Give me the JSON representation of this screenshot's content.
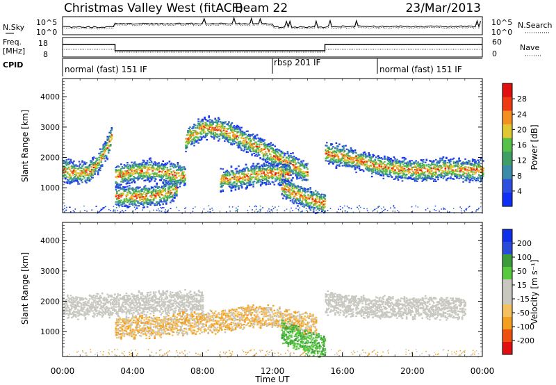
{
  "header": {
    "radar_title": "Christmas Valley West (fitACF)",
    "beam": "Beam 22",
    "date": "23/Mar/2013"
  },
  "nsky_panel": {
    "left_label": "N.Sky",
    "left_ticks": [
      "10^5",
      "10^0"
    ],
    "right_label": "N.Search",
    "right_ticks": [
      "10^5",
      "10^0"
    ]
  },
  "freq_panel": {
    "left_label_line1": "Freq.",
    "left_label_line2": "[MHz]",
    "left_ticks": [
      "18",
      "8"
    ],
    "right_label": "Nave",
    "right_ticks": [
      "60",
      "0"
    ]
  },
  "cpid": {
    "label": "CPID",
    "segments": [
      {
        "text": "normal (fast) 151 IF",
        "start_hour": 0.0
      },
      {
        "text": "rbsp 201 IF",
        "start_hour": 12.0
      },
      {
        "text": "normal (fast) 151 IF",
        "start_hour": 18.0
      }
    ]
  },
  "chart_data": [
    {
      "type": "heatmap",
      "name": "power",
      "ylabel": "Slant Range [km]",
      "yticks": [
        "4000",
        "3000",
        "2000",
        "1000"
      ],
      "ylim": [
        180,
        4600
      ],
      "xlim": [
        0,
        24
      ],
      "colorbar": {
        "label": "Power [dB]",
        "ticks": [
          "28",
          "24",
          "20",
          "16",
          "12",
          "8",
          "4"
        ],
        "range": [
          0,
          32
        ],
        "colors": [
          "#0f2ff2",
          "#2e4ee0",
          "#3a8ca8",
          "#3f9f64",
          "#56c14a",
          "#e0c830",
          "#f39020",
          "#ee3a14",
          "#e01010"
        ]
      },
      "series": [
        {
          "x": [
            0,
            0.5,
            1.0,
            1.5,
            2.0,
            2.5,
            2.8
          ],
          "y": [
            1600,
            1540,
            1490,
            1550,
            1850,
            2300,
            2800
          ]
        },
        {
          "x": [
            3.0,
            3.5,
            4.0,
            5.0,
            6.0,
            6.5
          ],
          "y": [
            750,
            730,
            740,
            760,
            850,
            1000
          ]
        },
        {
          "x": [
            3.0,
            4.0,
            5.0,
            6.0,
            7.0
          ],
          "y": [
            1400,
            1550,
            1600,
            1500,
            1400
          ]
        },
        {
          "x": [
            7.0,
            8.0,
            9.0,
            10.0,
            11.0,
            12.0,
            13.0,
            14.0
          ],
          "y": [
            2600,
            3000,
            2950,
            2700,
            2400,
            2100,
            1800,
            1500
          ]
        },
        {
          "x": [
            9.0,
            10.0,
            11.0,
            12.0,
            13.0
          ],
          "y": [
            1300,
            1350,
            1450,
            1500,
            1450
          ]
        },
        {
          "x": [
            12.5,
            13.0,
            14.0,
            15.0
          ],
          "y": [
            1050,
            900,
            650,
            500
          ]
        },
        {
          "x": [
            15.0,
            16.0,
            17.0,
            18.0,
            19.0,
            20.0,
            21.0,
            22.0,
            23.0,
            24.0
          ],
          "y": [
            2150,
            2050,
            1900,
            1750,
            1650,
            1600,
            1600,
            1650,
            1600,
            1600
          ]
        }
      ]
    },
    {
      "type": "heatmap",
      "name": "velocity",
      "ylabel": "Slant Range [km]",
      "yticks": [
        "4000",
        "3000",
        "2000",
        "1000"
      ],
      "ylim": [
        180,
        4600
      ],
      "xlim": [
        0,
        24
      ],
      "xticks": [
        "00:00",
        "04:00",
        "08:00",
        "12:00",
        "16:00",
        "20:00",
        "00:00"
      ],
      "xlabel": "Time UT",
      "colorbar": {
        "label": "Velocity [m s⁻¹]",
        "ticks": [
          "200",
          "100",
          "50",
          "15",
          "-15",
          "-50",
          "-100",
          "-200"
        ],
        "range": [
          -250,
          250
        ],
        "colors": [
          "#e01010",
          "#ee5010",
          "#f3a020",
          "#f4c060",
          "#c8c8c0",
          "#c8c8c0",
          "#58c840",
          "#3c9c3c",
          "#2a4ad8",
          "#102fe8"
        ]
      },
      "series": [
        {
          "x": [
            0,
            1.0,
            2.0,
            3.0,
            4.0,
            6.0,
            8.0
          ],
          "y": [
            1850,
            1800,
            1900,
            1900,
            1950,
            2000,
            2000
          ]
        },
        {
          "x": [
            3.0,
            5.0,
            7.0,
            9.0,
            11.0,
            13.0,
            14.5
          ],
          "y": [
            1150,
            1200,
            1300,
            1350,
            1550,
            1400,
            1200
          ]
        },
        {
          "x": [
            12.5,
            13.0,
            14.0,
            15.0
          ],
          "y": [
            1050,
            900,
            650,
            500
          ]
        },
        {
          "x": [
            15.0,
            17.0,
            19.0,
            21.0,
            23.0
          ],
          "y": [
            1950,
            1850,
            1800,
            1800,
            1800
          ]
        }
      ]
    }
  ],
  "colors": {
    "axis": "#000000",
    "background": "#ffffff"
  }
}
